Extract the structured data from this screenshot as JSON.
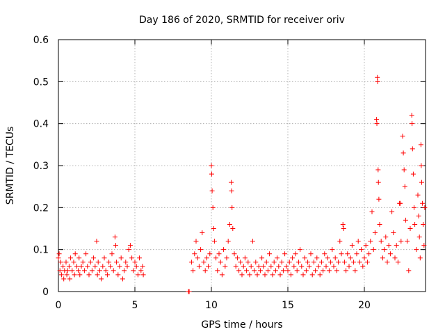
{
  "chart_data": {
    "type": "scatter",
    "title": "Day 186 of 2020, SRMTID for receiver oriv",
    "xlabel": "GPS time / hours",
    "ylabel": "SRMTID / TECUs",
    "xlim": [
      0,
      24
    ],
    "ylim": [
      0,
      0.6
    ],
    "x_ticks": [
      0,
      5,
      10,
      15,
      20
    ],
    "x_tick_labels": [
      "0",
      "5",
      "10",
      "15",
      "20"
    ],
    "y_ticks": [
      0,
      0.1,
      0.2,
      0.3,
      0.4,
      0.5,
      0.6
    ],
    "y_tick_labels": [
      "0",
      "0.1",
      "0.2",
      "0.3",
      "0.4",
      "0.5",
      "0.6"
    ],
    "grid": true,
    "marker": "plus",
    "color": "#ff0000",
    "series": [
      {
        "name": "SRMTID",
        "points": [
          [
            0.0,
            0.08
          ],
          [
            0.05,
            0.09
          ],
          [
            0.1,
            0.05
          ],
          [
            0.15,
            0.07
          ],
          [
            0.2,
            0.04
          ],
          [
            0.3,
            0.06
          ],
          [
            0.35,
            0.03
          ],
          [
            0.4,
            0.05
          ],
          [
            0.5,
            0.07
          ],
          [
            0.55,
            0.04
          ],
          [
            0.6,
            0.05
          ],
          [
            0.7,
            0.06
          ],
          [
            0.75,
            0.03
          ],
          [
            0.8,
            0.08
          ],
          [
            0.9,
            0.05
          ],
          [
            1.0,
            0.07
          ],
          [
            1.05,
            0.04
          ],
          [
            1.1,
            0.09
          ],
          [
            1.2,
            0.06
          ],
          [
            1.3,
            0.05
          ],
          [
            1.35,
            0.08
          ],
          [
            1.4,
            0.04
          ],
          [
            1.5,
            0.06
          ],
          [
            1.6,
            0.07
          ],
          [
            1.7,
            0.05
          ],
          [
            1.8,
            0.09
          ],
          [
            1.9,
            0.06
          ],
          [
            2.0,
            0.04
          ],
          [
            2.1,
            0.07
          ],
          [
            2.2,
            0.05
          ],
          [
            2.3,
            0.08
          ],
          [
            2.4,
            0.06
          ],
          [
            2.5,
            0.12
          ],
          [
            2.55,
            0.04
          ],
          [
            2.6,
            0.07
          ],
          [
            2.7,
            0.05
          ],
          [
            2.8,
            0.03
          ],
          [
            2.9,
            0.06
          ],
          [
            3.0,
            0.08
          ],
          [
            3.1,
            0.05
          ],
          [
            3.2,
            0.04
          ],
          [
            3.3,
            0.07
          ],
          [
            3.4,
            0.06
          ],
          [
            3.5,
            0.09
          ],
          [
            3.6,
            0.05
          ],
          [
            3.7,
            0.13
          ],
          [
            3.75,
            0.11
          ],
          [
            3.8,
            0.07
          ],
          [
            3.9,
            0.04
          ],
          [
            4.0,
            0.06
          ],
          [
            4.1,
            0.08
          ],
          [
            4.2,
            0.03
          ],
          [
            4.3,
            0.05
          ],
          [
            4.4,
            0.07
          ],
          [
            4.5,
            0.06
          ],
          [
            4.6,
            0.1
          ],
          [
            4.7,
            0.11
          ],
          [
            4.8,
            0.08
          ],
          [
            4.9,
            0.05
          ],
          [
            5.0,
            0.07
          ],
          [
            5.1,
            0.06
          ],
          [
            5.2,
            0.04
          ],
          [
            5.3,
            0.08
          ],
          [
            5.4,
            0.05
          ],
          [
            5.5,
            0.06
          ],
          [
            5.55,
            0.04
          ],
          [
            8.5,
            0.0
          ],
          [
            8.55,
            0.0
          ],
          [
            8.7,
            0.07
          ],
          [
            8.8,
            0.05
          ],
          [
            8.9,
            0.09
          ],
          [
            9.0,
            0.12
          ],
          [
            9.1,
            0.08
          ],
          [
            9.2,
            0.06
          ],
          [
            9.3,
            0.1
          ],
          [
            9.4,
            0.14
          ],
          [
            9.5,
            0.07
          ],
          [
            9.6,
            0.05
          ],
          [
            9.7,
            0.08
          ],
          [
            9.8,
            0.06
          ],
          [
            9.9,
            0.09
          ],
          [
            10.0,
            0.3
          ],
          [
            10.02,
            0.28
          ],
          [
            10.05,
            0.24
          ],
          [
            10.1,
            0.2
          ],
          [
            10.15,
            0.15
          ],
          [
            10.2,
            0.12
          ],
          [
            10.3,
            0.08
          ],
          [
            10.4,
            0.05
          ],
          [
            10.5,
            0.09
          ],
          [
            10.6,
            0.07
          ],
          [
            10.7,
            0.04
          ],
          [
            10.8,
            0.1
          ],
          [
            10.9,
            0.06
          ],
          [
            11.0,
            0.08
          ],
          [
            11.1,
            0.12
          ],
          [
            11.2,
            0.16
          ],
          [
            11.3,
            0.26
          ],
          [
            11.32,
            0.24
          ],
          [
            11.35,
            0.2
          ],
          [
            11.4,
            0.15
          ],
          [
            11.5,
            0.09
          ],
          [
            11.6,
            0.06
          ],
          [
            11.7,
            0.08
          ],
          [
            11.8,
            0.05
          ],
          [
            11.9,
            0.07
          ],
          [
            12.0,
            0.04
          ],
          [
            12.1,
            0.06
          ],
          [
            12.2,
            0.08
          ],
          [
            12.3,
            0.05
          ],
          [
            12.4,
            0.07
          ],
          [
            12.5,
            0.04
          ],
          [
            12.6,
            0.06
          ],
          [
            12.7,
            0.12
          ],
          [
            12.8,
            0.05
          ],
          [
            12.9,
            0.07
          ],
          [
            13.0,
            0.04
          ],
          [
            13.1,
            0.06
          ],
          [
            13.2,
            0.05
          ],
          [
            13.3,
            0.08
          ],
          [
            13.4,
            0.06
          ],
          [
            13.5,
            0.04
          ],
          [
            13.6,
            0.07
          ],
          [
            13.7,
            0.05
          ],
          [
            13.8,
            0.09
          ],
          [
            13.9,
            0.06
          ],
          [
            14.0,
            0.04
          ],
          [
            14.1,
            0.07
          ],
          [
            14.2,
            0.05
          ],
          [
            14.3,
            0.08
          ],
          [
            14.4,
            0.06
          ],
          [
            14.5,
            0.04
          ],
          [
            14.6,
            0.07
          ],
          [
            14.7,
            0.05
          ],
          [
            14.8,
            0.09
          ],
          [
            14.9,
            0.06
          ],
          [
            15.0,
            0.05
          ],
          [
            15.1,
            0.07
          ],
          [
            15.2,
            0.04
          ],
          [
            15.3,
            0.08
          ],
          [
            15.4,
            0.06
          ],
          [
            15.5,
            0.09
          ],
          [
            15.6,
            0.05
          ],
          [
            15.7,
            0.07
          ],
          [
            15.8,
            0.1
          ],
          [
            15.9,
            0.06
          ],
          [
            16.0,
            0.04
          ],
          [
            16.1,
            0.08
          ],
          [
            16.2,
            0.05
          ],
          [
            16.3,
            0.07
          ],
          [
            16.4,
            0.06
          ],
          [
            16.5,
            0.09
          ],
          [
            16.6,
            0.04
          ],
          [
            16.7,
            0.07
          ],
          [
            16.8,
            0.05
          ],
          [
            16.9,
            0.08
          ],
          [
            17.0,
            0.06
          ],
          [
            17.1,
            0.04
          ],
          [
            17.2,
            0.07
          ],
          [
            17.3,
            0.05
          ],
          [
            17.4,
            0.09
          ],
          [
            17.5,
            0.06
          ],
          [
            17.6,
            0.08
          ],
          [
            17.7,
            0.05
          ],
          [
            17.8,
            0.07
          ],
          [
            17.9,
            0.1
          ],
          [
            18.0,
            0.06
          ],
          [
            18.1,
            0.08
          ],
          [
            18.2,
            0.05
          ],
          [
            18.3,
            0.07
          ],
          [
            18.4,
            0.12
          ],
          [
            18.5,
            0.09
          ],
          [
            18.6,
            0.16
          ],
          [
            18.65,
            0.15
          ],
          [
            18.7,
            0.07
          ],
          [
            18.8,
            0.05
          ],
          [
            18.9,
            0.09
          ],
          [
            19.0,
            0.06
          ],
          [
            19.1,
            0.08
          ],
          [
            19.2,
            0.11
          ],
          [
            19.3,
            0.07
          ],
          [
            19.4,
            0.05
          ],
          [
            19.5,
            0.09
          ],
          [
            19.6,
            0.12
          ],
          [
            19.7,
            0.07
          ],
          [
            19.8,
            0.1
          ],
          [
            19.9,
            0.06
          ],
          [
            20.0,
            0.08
          ],
          [
            20.1,
            0.11
          ],
          [
            20.2,
            0.07
          ],
          [
            20.3,
            0.09
          ],
          [
            20.4,
            0.12
          ],
          [
            20.5,
            0.19
          ],
          [
            20.6,
            0.1
          ],
          [
            20.7,
            0.14
          ],
          [
            20.8,
            0.41
          ],
          [
            20.82,
            0.4
          ],
          [
            20.85,
            0.51
          ],
          [
            20.87,
            0.5
          ],
          [
            20.9,
            0.29
          ],
          [
            20.92,
            0.26
          ],
          [
            20.95,
            0.22
          ],
          [
            21.0,
            0.16
          ],
          [
            21.1,
            0.12
          ],
          [
            21.2,
            0.08
          ],
          [
            21.3,
            0.1
          ],
          [
            21.4,
            0.13
          ],
          [
            21.5,
            0.07
          ],
          [
            21.6,
            0.11
          ],
          [
            21.7,
            0.09
          ],
          [
            21.8,
            0.19
          ],
          [
            21.9,
            0.14
          ],
          [
            22.0,
            0.08
          ],
          [
            22.1,
            0.11
          ],
          [
            22.2,
            0.07
          ],
          [
            22.3,
            0.21
          ],
          [
            22.35,
            0.21
          ],
          [
            22.4,
            0.12
          ],
          [
            22.5,
            0.37
          ],
          [
            22.55,
            0.33
          ],
          [
            22.6,
            0.29
          ],
          [
            22.65,
            0.25
          ],
          [
            22.7,
            0.17
          ],
          [
            22.8,
            0.12
          ],
          [
            22.9,
            0.05
          ],
          [
            23.0,
            0.15
          ],
          [
            23.1,
            0.42
          ],
          [
            23.12,
            0.4
          ],
          [
            23.15,
            0.34
          ],
          [
            23.2,
            0.28
          ],
          [
            23.25,
            0.2
          ],
          [
            23.3,
            0.16
          ],
          [
            23.4,
            0.1
          ],
          [
            23.5,
            0.23
          ],
          [
            23.55,
            0.18
          ],
          [
            23.6,
            0.13
          ],
          [
            23.65,
            0.08
          ],
          [
            23.7,
            0.35
          ],
          [
            23.72,
            0.3
          ],
          [
            23.75,
            0.26
          ],
          [
            23.8,
            0.21
          ],
          [
            23.85,
            0.16
          ],
          [
            23.9,
            0.11
          ],
          [
            23.95,
            0.2
          ]
        ]
      }
    ]
  }
}
